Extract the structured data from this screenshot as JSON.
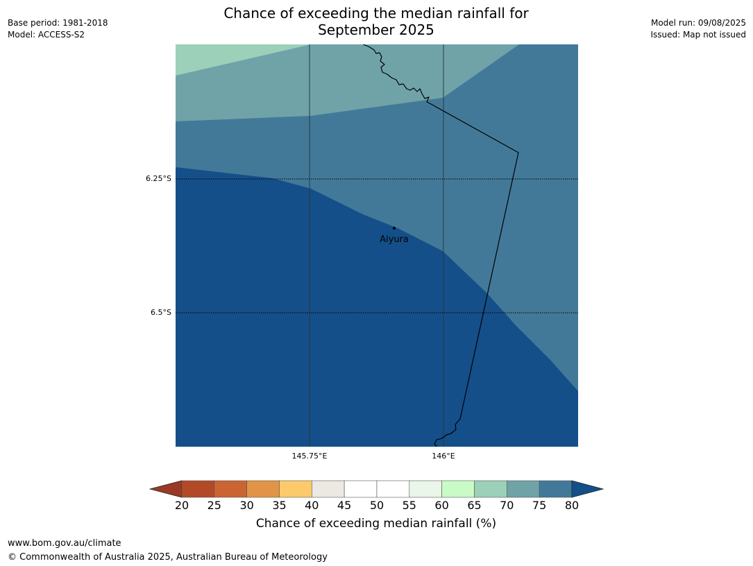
{
  "title": {
    "line1": "Chance of exceeding the median rainfall for",
    "line2": "September 2025"
  },
  "meta_left": {
    "base_period": "Base period: 1981-2018",
    "model": "Model: ACCESS-S2"
  },
  "meta_right": {
    "model_run": "Model run: 09/08/2025",
    "issued": "Issued: Map not issued"
  },
  "map": {
    "latitude_labels": [
      "6.25°S",
      "6.5°S"
    ],
    "longitude_labels": [
      "145.75°E",
      "146°E"
    ],
    "place": "Aiyura",
    "region_colors": {
      "60-65": "#c9fbc7",
      "65-70": "#9cd0b9",
      "70-75": "#6fa3a8",
      "75-80": "#437998",
      "above-80": "#144f89"
    }
  },
  "colorbar": {
    "ticks": [
      "20",
      "25",
      "30",
      "35",
      "40",
      "45",
      "50",
      "55",
      "60",
      "65",
      "70",
      "75",
      "80"
    ],
    "bins": [
      {
        "range": "20-25",
        "color": "#b24a27"
      },
      {
        "range": "25-30",
        "color": "#cb6433"
      },
      {
        "range": "30-35",
        "color": "#e29446"
      },
      {
        "range": "35-40",
        "color": "#fcca6a"
      },
      {
        "range": "40-45",
        "color": "#ece8e2"
      },
      {
        "range": "45-50",
        "color": "#ffffff"
      },
      {
        "range": "50-55",
        "color": "#ffffff"
      },
      {
        "range": "55-60",
        "color": "#e9f6e9"
      },
      {
        "range": "60-65",
        "color": "#c9fbc7"
      },
      {
        "range": "65-70",
        "color": "#9cd0b9"
      },
      {
        "range": "70-75",
        "color": "#6fa3a8"
      },
      {
        "range": "75-80",
        "color": "#437998"
      }
    ],
    "below_color": "#9a3a24",
    "above_color": "#144f89",
    "label": "Chance of exceeding median rainfall (%)"
  },
  "footer": {
    "url": "www.bom.gov.au/climate",
    "copyright": "© Commonwealth of Australia 2025, Australian Bureau of Meteorology"
  }
}
